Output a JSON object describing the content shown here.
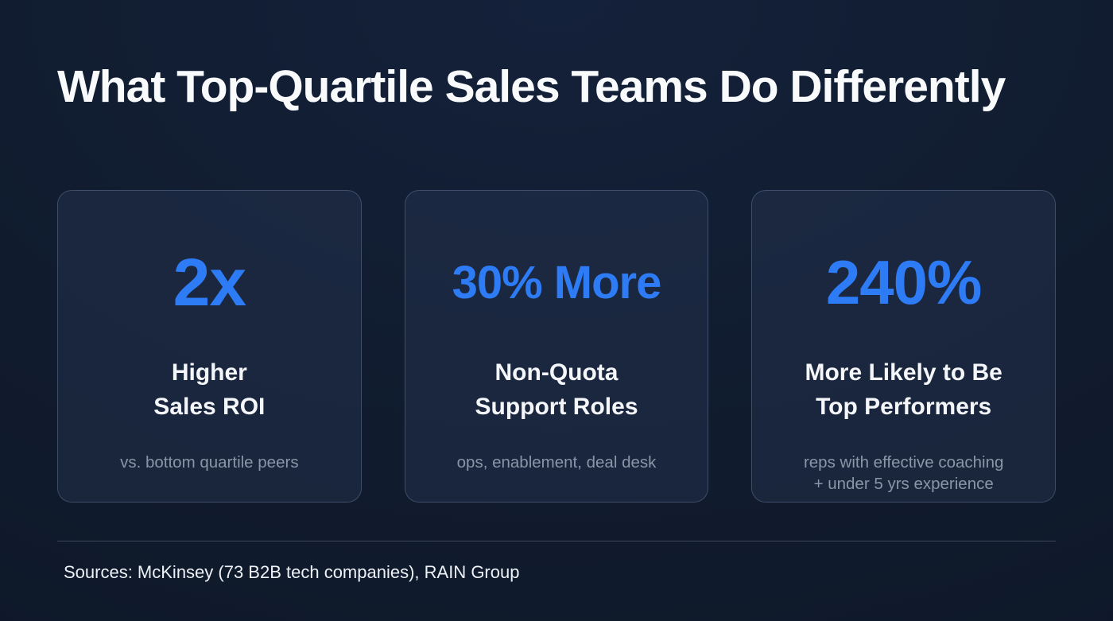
{
  "slide": {
    "title": "What Top-Quartile Sales Teams Do Differently",
    "footer": "Sources: McKinsey (73 B2B tech companies), RAIN Group"
  },
  "cards": [
    {
      "stat": "2x",
      "label": "Higher\nSales ROI",
      "caption": "vs. bottom quartile peers"
    },
    {
      "stat": "30% More",
      "label": "Non-Quota\nSupport Roles",
      "caption": "ops, enablement, deal desk"
    },
    {
      "stat": "240%",
      "label": "More Likely to Be\nTop Performers",
      "caption": "reps with effective coaching\n+ under 5 yrs experience"
    }
  ],
  "colors": {
    "background": "#101b2d",
    "card_background": "#233148",
    "card_border": "#5a6a88",
    "accent_blue": "#2e7bf6",
    "heading_text": "#f8fafc",
    "muted_text": "#8b95a8",
    "divider": "#3c475c"
  }
}
